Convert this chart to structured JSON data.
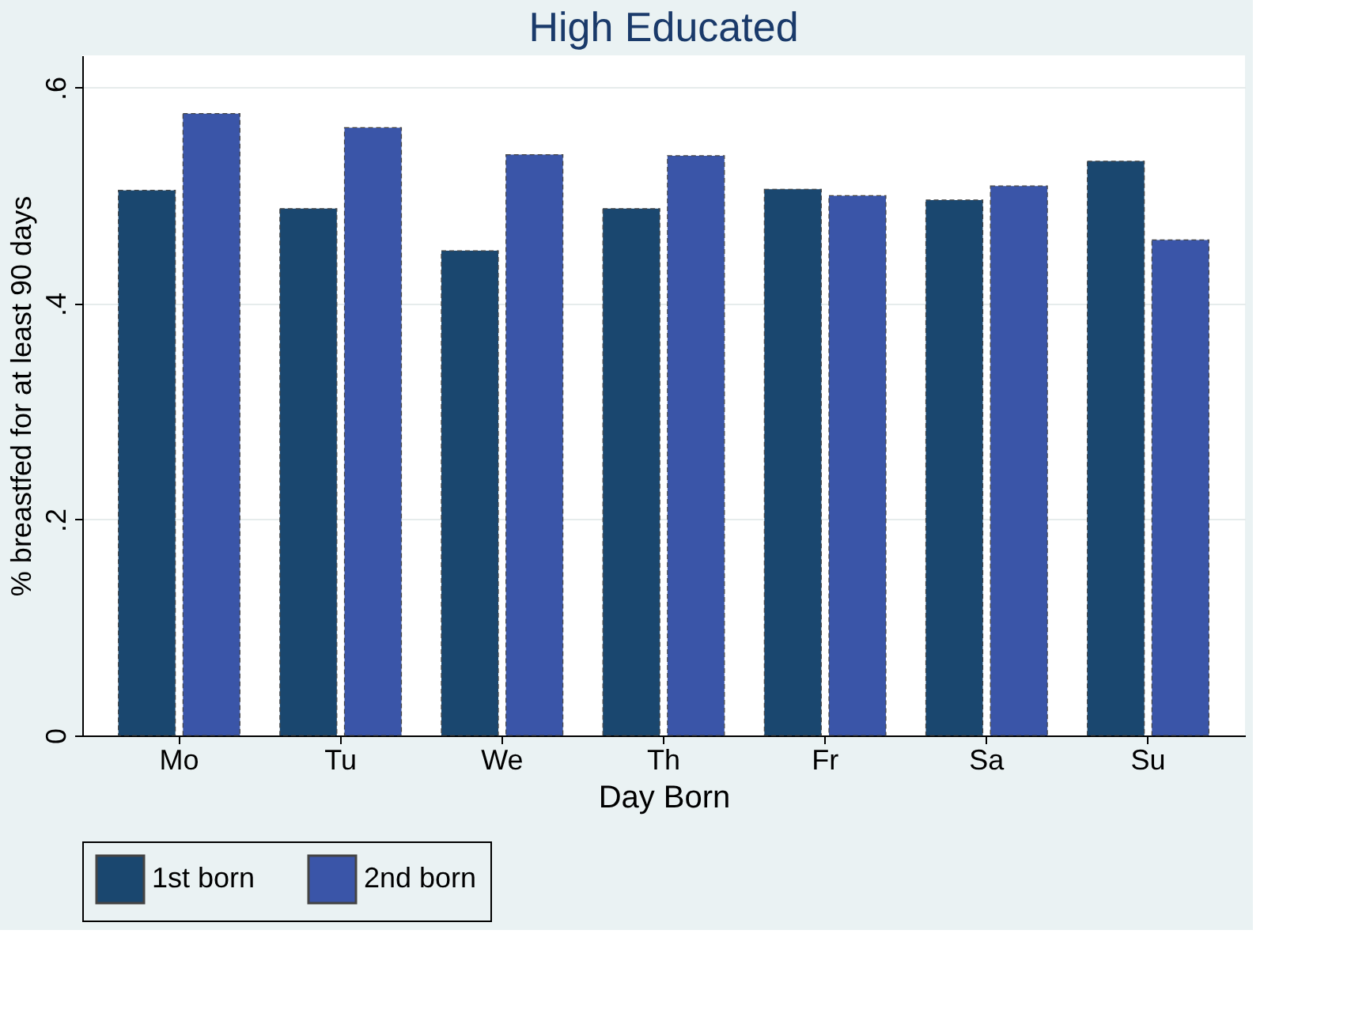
{
  "chart_data": {
    "type": "bar",
    "title": "High Educated",
    "xlabel": "Day Born",
    "ylabel": "% breastfed for at least 90 days",
    "categories": [
      "Mo",
      "Tu",
      "We",
      "Th",
      "Fr",
      "Sa",
      "Su"
    ],
    "series": [
      {
        "name": "1st born",
        "color": "#1a476f",
        "values": [
          0.505,
          0.488,
          0.449,
          0.488,
          0.506,
          0.496,
          0.532
        ]
      },
      {
        "name": "2nd born",
        "color": "#3a55a8",
        "values": [
          0.576,
          0.563,
          0.538,
          0.537,
          0.5,
          0.509,
          0.459
        ]
      }
    ],
    "ylim": [
      0,
      0.63
    ],
    "yticks": [
      0,
      {
        "value": 0.2,
        "label": ".2"
      },
      {
        "value": 0.4,
        "label": ".4"
      },
      {
        "value": 0.6,
        "label": ".6"
      }
    ],
    "grid": "y",
    "legend": "bottom"
  }
}
